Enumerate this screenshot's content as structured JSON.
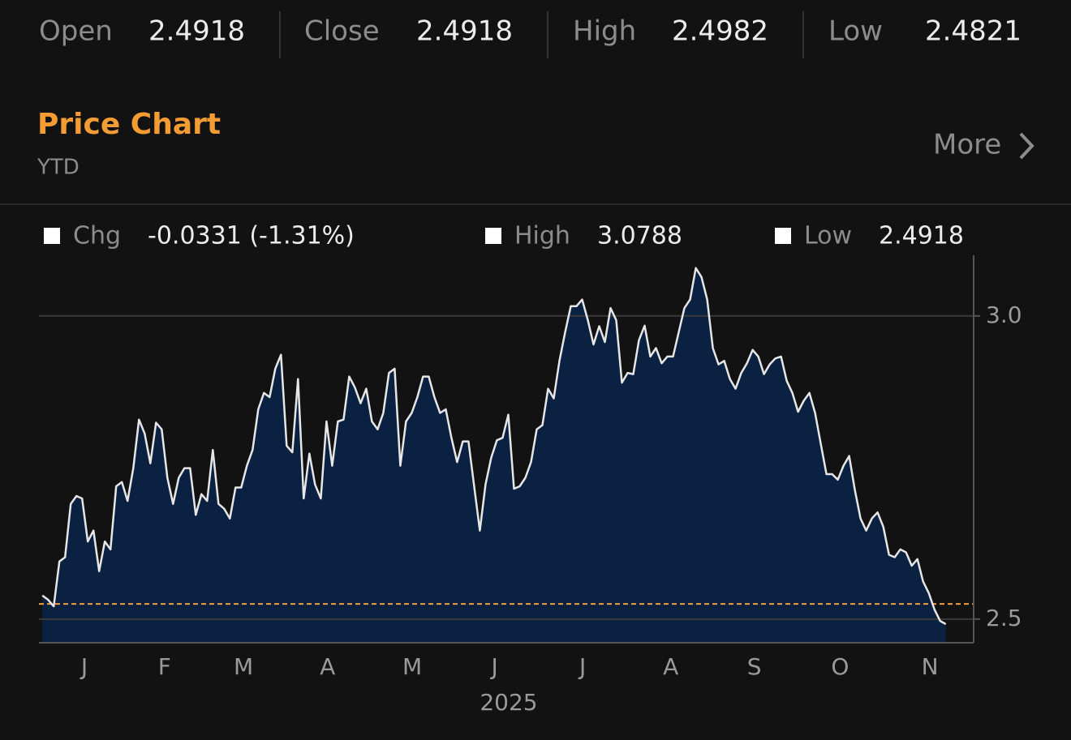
{
  "header": {
    "stats": [
      {
        "label": "Open",
        "value": "2.4918"
      },
      {
        "label": "Close",
        "value": "2.4918"
      },
      {
        "label": "High",
        "value": "2.4982"
      },
      {
        "label": "Low",
        "value": "2.4821"
      }
    ]
  },
  "section": {
    "title": "Price Chart",
    "period": "YTD",
    "more": "More"
  },
  "legend": [
    {
      "label": "Chg",
      "value": "-0.0331 (-1.31%)"
    },
    {
      "label": "High",
      "value": "3.0788"
    },
    {
      "label": "Low",
      "value": "2.4918"
    }
  ],
  "chart_data": {
    "type": "line",
    "x_label": "2025",
    "color": "#e6e6e6",
    "area_color": "#0b2142",
    "reference_line": {
      "value": 2.525,
      "color": "#f0a040"
    },
    "values": [
      2.539,
      2.532,
      2.521,
      2.595,
      2.602,
      2.69,
      2.703,
      2.699,
      2.628,
      2.646,
      2.579,
      2.628,
      2.615,
      2.719,
      2.726,
      2.695,
      2.749,
      2.829,
      2.806,
      2.757,
      2.824,
      2.813,
      2.733,
      2.69,
      2.733,
      2.749,
      2.749,
      2.672,
      2.706,
      2.695,
      2.779,
      2.69,
      2.682,
      2.666,
      2.717,
      2.717,
      2.753,
      2.779,
      2.846,
      2.873,
      2.866,
      2.913,
      2.936,
      2.786,
      2.775,
      2.896,
      2.699,
      2.773,
      2.722,
      2.699,
      2.826,
      2.753,
      2.826,
      2.829,
      2.9,
      2.882,
      2.856,
      2.88,
      2.826,
      2.813,
      2.84,
      2.906,
      2.913,
      2.753,
      2.826,
      2.84,
      2.866,
      2.9,
      2.9,
      2.866,
      2.84,
      2.846,
      2.799,
      2.759,
      2.793,
      2.793,
      2.719,
      2.646,
      2.722,
      2.766,
      2.795,
      2.799,
      2.837,
      2.715,
      2.719,
      2.733,
      2.759,
      2.813,
      2.82,
      2.88,
      2.864,
      2.926,
      2.973,
      3.016,
      3.016,
      3.027,
      2.993,
      2.953,
      2.983,
      2.957,
      3.013,
      2.993,
      2.89,
      2.906,
      2.904,
      2.96,
      2.984,
      2.933,
      2.947,
      2.922,
      2.933,
      2.933,
      2.973,
      3.013,
      3.027,
      3.079,
      3.064,
      3.027,
      2.947,
      2.92,
      2.926,
      2.896,
      2.88,
      2.906,
      2.922,
      2.944,
      2.933,
      2.904,
      2.92,
      2.93,
      2.933,
      2.893,
      2.873,
      2.842,
      2.86,
      2.873,
      2.84,
      2.789,
      2.739,
      2.739,
      2.73,
      2.753,
      2.769,
      2.713,
      2.666,
      2.646,
      2.666,
      2.676,
      2.652,
      2.606,
      2.602,
      2.615,
      2.61,
      2.588,
      2.599,
      2.562,
      2.543,
      2.516,
      2.497,
      2.4918
    ],
    "xlim": [
      -0.6,
      163.9
    ],
    "xticks": [
      {
        "value": 7.4,
        "label": "J"
      },
      {
        "value": 21.5,
        "label": "F"
      },
      {
        "value": 35.4,
        "label": "M"
      },
      {
        "value": 50.2,
        "label": "A"
      },
      {
        "value": 65.1,
        "label": "M"
      },
      {
        "value": 79.6,
        "label": "J"
      },
      {
        "value": 95.1,
        "label": "J"
      },
      {
        "value": 110.6,
        "label": "A"
      },
      {
        "value": 125.3,
        "label": "S"
      },
      {
        "value": 140.4,
        "label": "O"
      },
      {
        "value": 156.2,
        "label": "N"
      }
    ],
    "ylim": [
      2.461,
      3.1
    ],
    "yticks": [
      {
        "value": 2.5,
        "label": "2.5"
      },
      {
        "value": 3,
        "label": "3.0"
      }
    ],
    "grid": true
  }
}
